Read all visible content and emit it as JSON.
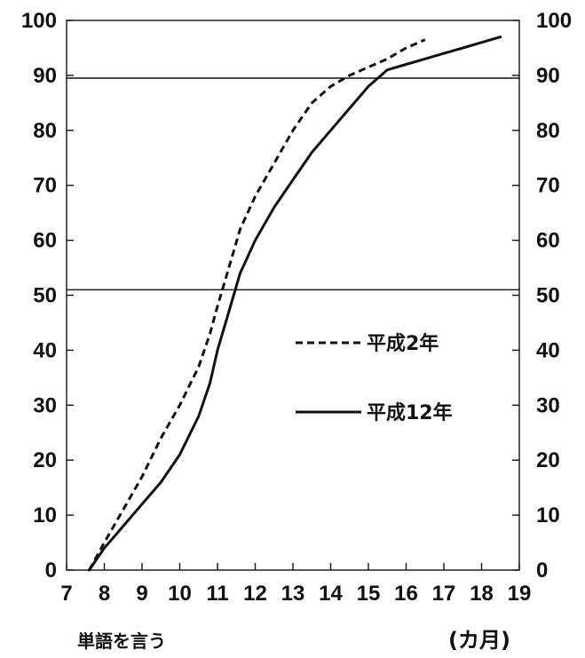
{
  "chart_data": {
    "type": "line",
    "x_ticks": [
      "7",
      "8",
      "9",
      "10",
      "11",
      "12",
      "13",
      "14",
      "15",
      "16",
      "17",
      "18",
      "19"
    ],
    "y_ticks_left": [
      "0",
      "10",
      "20",
      "30",
      "40",
      "50",
      "60",
      "70",
      "80",
      "90",
      "100"
    ],
    "y_ticks_right": [
      "0",
      "10",
      "20",
      "30",
      "40",
      "50",
      "60",
      "70",
      "80",
      "90",
      "100"
    ],
    "xlim": [
      7,
      19
    ],
    "ylim": [
      0,
      100
    ],
    "grid": false,
    "reference_lines": [
      89.5,
      51
    ],
    "x_note": "単語を言う",
    "x_unit": "(カ月)",
    "legend_placement": "center-right",
    "series": [
      {
        "name": "平成2年",
        "style": "dashed",
        "x": [
          7.6,
          8.0,
          8.5,
          9.0,
          9.5,
          10.0,
          10.5,
          10.8,
          11.0,
          11.3,
          11.6,
          12.0,
          12.5,
          13.0,
          13.5,
          14.0,
          14.5,
          15.0,
          15.5,
          16.0,
          16.5
        ],
        "y": [
          0,
          5,
          11,
          17,
          24,
          30,
          37,
          43,
          48,
          55,
          62,
          68,
          74,
          80,
          85,
          88,
          90,
          91.5,
          93,
          95,
          96.5
        ]
      },
      {
        "name": "平成12年",
        "style": "solid",
        "x": [
          7.6,
          8.0,
          8.5,
          9.0,
          9.5,
          10.0,
          10.5,
          10.8,
          11.0,
          11.3,
          11.6,
          12.0,
          12.5,
          13.0,
          13.5,
          14.0,
          14.5,
          15.0,
          15.5,
          16.0,
          16.5,
          17.0,
          17.5,
          18.0,
          18.5
        ],
        "y": [
          0,
          4,
          8,
          12,
          16,
          21,
          28,
          34,
          40,
          47,
          54,
          60,
          66,
          71,
          76,
          80,
          84,
          88,
          91,
          92,
          93,
          94,
          95,
          96,
          97
        ]
      }
    ]
  }
}
